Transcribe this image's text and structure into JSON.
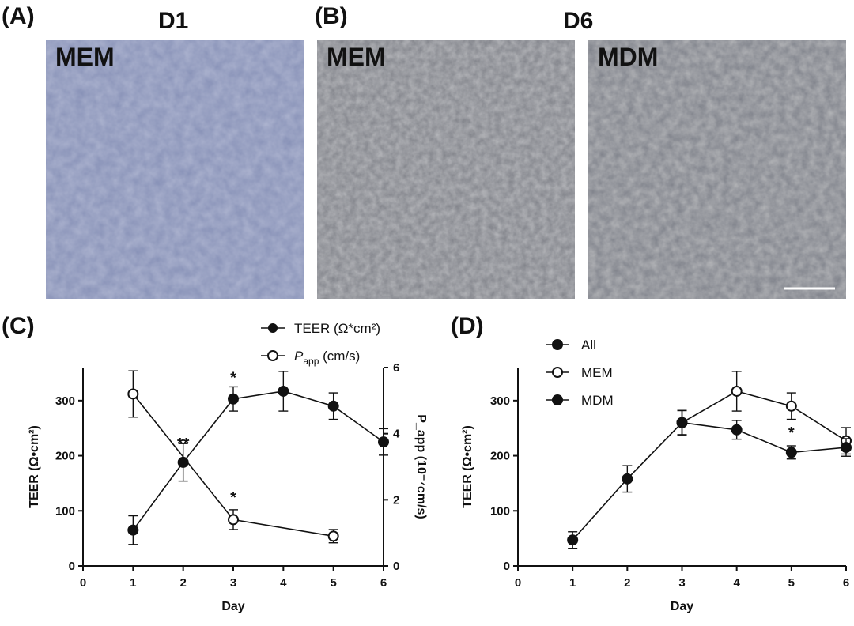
{
  "top": {
    "panel_a": "(A)",
    "panel_b": "(B)",
    "d1": "D1",
    "d6": "D6",
    "img1_label": "MEM",
    "img2_label": "MEM",
    "img3_label": "MDM"
  },
  "colors": {
    "micro_a": "#8690b6",
    "micro_b": "#8d8f96",
    "line": "#111111"
  },
  "chart_data": [
    {
      "type": "line",
      "panel": "(C)",
      "xlabel": "Day",
      "ylabel": "TEER (Ω•cm²)",
      "y2label": "P_app (10⁻⁷cm/s)",
      "xlim": [
        0,
        6
      ],
      "ylim": [
        0,
        360
      ],
      "y2lim": [
        0,
        6
      ],
      "xticks": [
        0,
        1,
        2,
        3,
        4,
        5,
        6
      ],
      "yticks": [
        0,
        100,
        200,
        300
      ],
      "y2ticks": [
        0,
        2,
        4,
        6
      ],
      "legend": {
        "teer": "TEER (Ω*cm²)",
        "papp_main": "P",
        "papp_sub": "app",
        "papp_rest": " (cm/s)"
      },
      "series": [
        {
          "name": "TEER (Ω*cm²)",
          "axis": "left",
          "filled": true,
          "x": [
            1,
            2,
            3,
            4,
            5,
            6
          ],
          "y": [
            65,
            188,
            303,
            317,
            290,
            225
          ],
          "err": [
            26,
            34,
            22,
            36,
            24,
            24
          ]
        },
        {
          "name": "Papp (cm/s)",
          "axis": "right",
          "filled": false,
          "x": [
            1,
            3,
            5
          ],
          "y": [
            5.2,
            1.4,
            0.9
          ],
          "err": [
            0.7,
            0.3,
            0.2
          ]
        }
      ],
      "annotations": [
        {
          "x": 2,
          "y": 212,
          "text": "**"
        },
        {
          "x": 3,
          "y": 332,
          "text": "*"
        },
        {
          "x": 3,
          "y": 115,
          "text": "*"
        }
      ]
    },
    {
      "type": "line",
      "panel": "(D)",
      "xlabel": "Day",
      "ylabel": "TEER (Ω•cm²)",
      "xlim": [
        0,
        6
      ],
      "ylim": [
        0,
        360
      ],
      "xticks": [
        0,
        1,
        2,
        3,
        4,
        5,
        6
      ],
      "yticks": [
        0,
        100,
        200,
        300
      ],
      "legend": [
        "All",
        "MEM",
        "MDM"
      ],
      "series": [
        {
          "name": "All",
          "filled": true,
          "x": [
            1,
            2,
            3
          ],
          "y": [
            47,
            158,
            260
          ],
          "err": [
            15,
            24,
            22
          ]
        },
        {
          "name": "MEM",
          "filled": false,
          "x": [
            3,
            4,
            5,
            6
          ],
          "y": [
            260,
            317,
            290,
            227
          ],
          "err": [
            22,
            36,
            24,
            24
          ]
        },
        {
          "name": "MDM",
          "filled": true,
          "x": [
            3,
            4,
            5,
            6
          ],
          "y": [
            260,
            247,
            206,
            215
          ],
          "err": [
            22,
            17,
            12,
            16
          ]
        }
      ],
      "annotations": [
        {
          "x": 5,
          "y": 232,
          "text": "*"
        }
      ]
    }
  ]
}
